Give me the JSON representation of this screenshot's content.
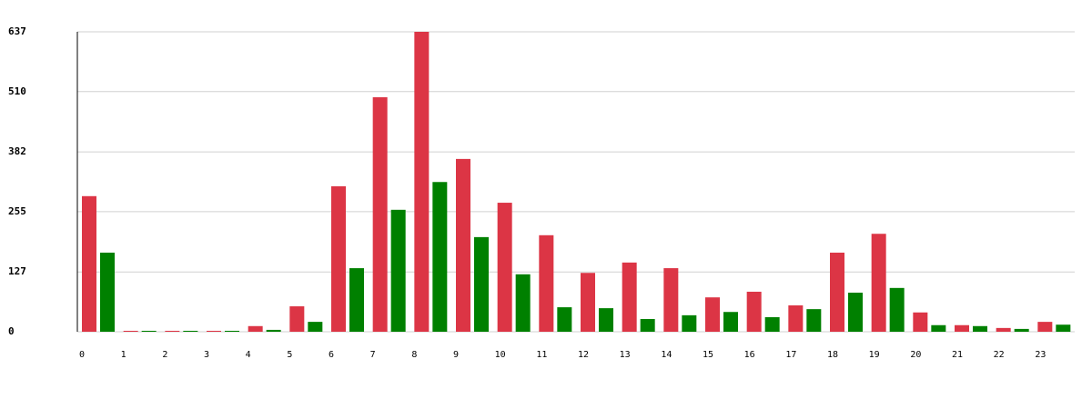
{
  "chart_data": {
    "type": "bar",
    "categories": [
      "0",
      "1",
      "2",
      "3",
      "4",
      "5",
      "6",
      "7",
      "8",
      "9",
      "10",
      "11",
      "12",
      "13",
      "14",
      "15",
      "16",
      "17",
      "18",
      "19",
      "20",
      "21",
      "22",
      "23"
    ],
    "series": [
      {
        "color": "#dc3545",
        "values": [
          288,
          2,
          2,
          2,
          12,
          54,
          309,
          498,
          637,
          367,
          274,
          205,
          125,
          147,
          135,
          73,
          85,
          56,
          168,
          208,
          41,
          14,
          8,
          21
        ]
      },
      {
        "color": "#008000",
        "values": [
          168,
          2,
          2,
          2,
          4,
          21,
          135,
          259,
          318,
          201,
          122,
          52,
          50,
          27,
          35,
          42,
          31,
          48,
          83,
          93,
          14,
          12,
          6,
          15
        ]
      }
    ],
    "ylim": [
      0,
      637
    ],
    "yticks": [
      0,
      127,
      255,
      382,
      510,
      637
    ],
    "grid": true
  }
}
